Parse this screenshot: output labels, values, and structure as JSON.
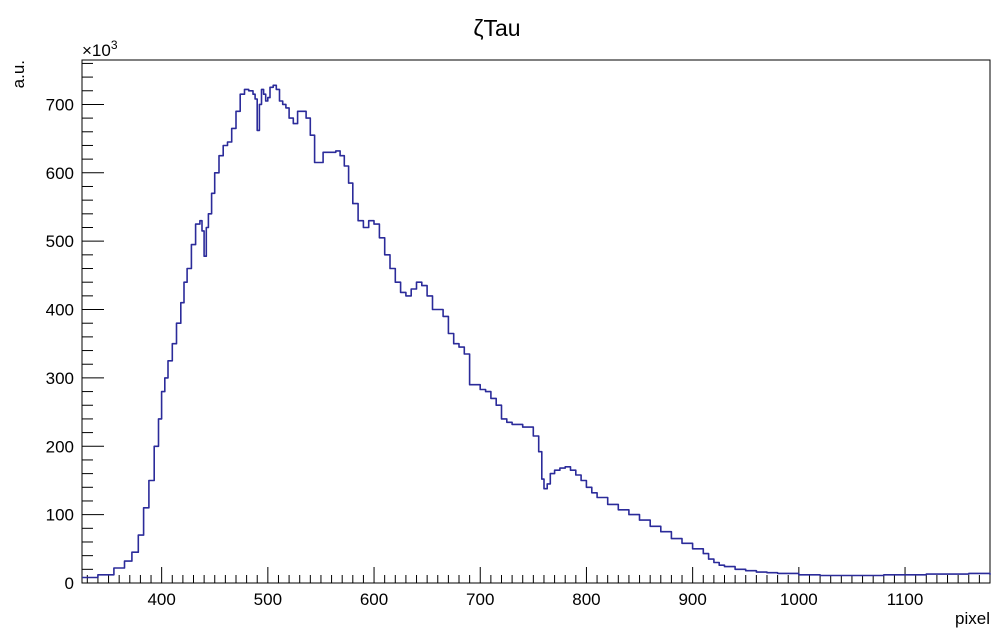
{
  "chart_data": {
    "type": "line",
    "title": "ζTau",
    "xlabel": "pixel",
    "ylabel": "a.u.",
    "y_multiplier_base": "×10",
    "y_multiplier_exp": "3",
    "xlim": [
      325,
      1180
    ],
    "ylim": [
      0,
      765
    ],
    "x_ticks": [
      400,
      500,
      600,
      700,
      800,
      900,
      1000,
      1100
    ],
    "x_tick_labels": [
      "400",
      "500",
      "600",
      "700",
      "800",
      "900",
      "1000",
      "1100"
    ],
    "y_ticks": [
      0,
      100,
      200,
      300,
      400,
      500,
      600,
      700
    ],
    "y_tick_labels": [
      "0",
      "100",
      "200",
      "300",
      "400",
      "500",
      "600",
      "700"
    ],
    "grid": false,
    "line_color": "#2b2b9a",
    "series": [
      {
        "x": [
          325,
          340,
          355,
          365,
          372,
          378,
          383,
          388,
          393,
          397,
          400,
          403,
          406,
          410,
          414,
          418,
          421,
          424,
          428,
          432,
          436,
          438,
          440,
          442,
          444,
          447,
          450,
          454,
          458,
          462,
          466,
          470,
          474,
          478,
          482,
          486,
          488,
          490,
          492,
          494,
          496,
          498,
          500,
          502,
          505,
          508,
          511,
          514,
          517,
          520,
          524,
          528,
          532,
          536,
          540,
          544,
          548,
          552,
          556,
          560,
          564,
          568,
          572,
          576,
          580,
          585,
          590,
          595,
          600,
          605,
          610,
          615,
          620,
          625,
          630,
          635,
          640,
          645,
          650,
          655,
          660,
          665,
          670,
          675,
          680,
          685,
          690,
          695,
          700,
          705,
          710,
          715,
          720,
          725,
          730,
          740,
          750,
          755,
          758,
          760,
          763,
          766,
          770,
          775,
          780,
          785,
          790,
          795,
          800,
          805,
          810,
          820,
          830,
          840,
          850,
          860,
          870,
          880,
          890,
          900,
          910,
          915,
          920,
          925,
          930,
          940,
          950,
          960,
          970,
          980,
          1000,
          1020,
          1040,
          1060,
          1080,
          1100,
          1120,
          1140,
          1160,
          1180
        ],
        "y": [
          8,
          12,
          22,
          32,
          45,
          70,
          110,
          150,
          200,
          240,
          280,
          300,
          325,
          350,
          380,
          410,
          440,
          460,
          495,
          525,
          530,
          515,
          478,
          520,
          540,
          570,
          600,
          625,
          640,
          645,
          665,
          690,
          715,
          722,
          720,
          715,
          708,
          662,
          700,
          722,
          715,
          705,
          710,
          725,
          728,
          722,
          705,
          700,
          695,
          680,
          672,
          690,
          690,
          680,
          655,
          615,
          615,
          630,
          630,
          630,
          632,
          625,
          610,
          585,
          555,
          530,
          520,
          530,
          525,
          505,
          480,
          460,
          440,
          425,
          420,
          430,
          440,
          435,
          420,
          400,
          400,
          390,
          365,
          350,
          345,
          335,
          290,
          290,
          283,
          280,
          270,
          260,
          240,
          235,
          232,
          228,
          215,
          192,
          152,
          138,
          145,
          160,
          165,
          168,
          170,
          165,
          158,
          150,
          140,
          132,
          125,
          115,
          107,
          100,
          92,
          83,
          75,
          65,
          58,
          50,
          43,
          35,
          30,
          26,
          24,
          20,
          18,
          16,
          15,
          14,
          12,
          11,
          11,
          11,
          12,
          12,
          13,
          13,
          14,
          12
        ]
      }
    ]
  }
}
